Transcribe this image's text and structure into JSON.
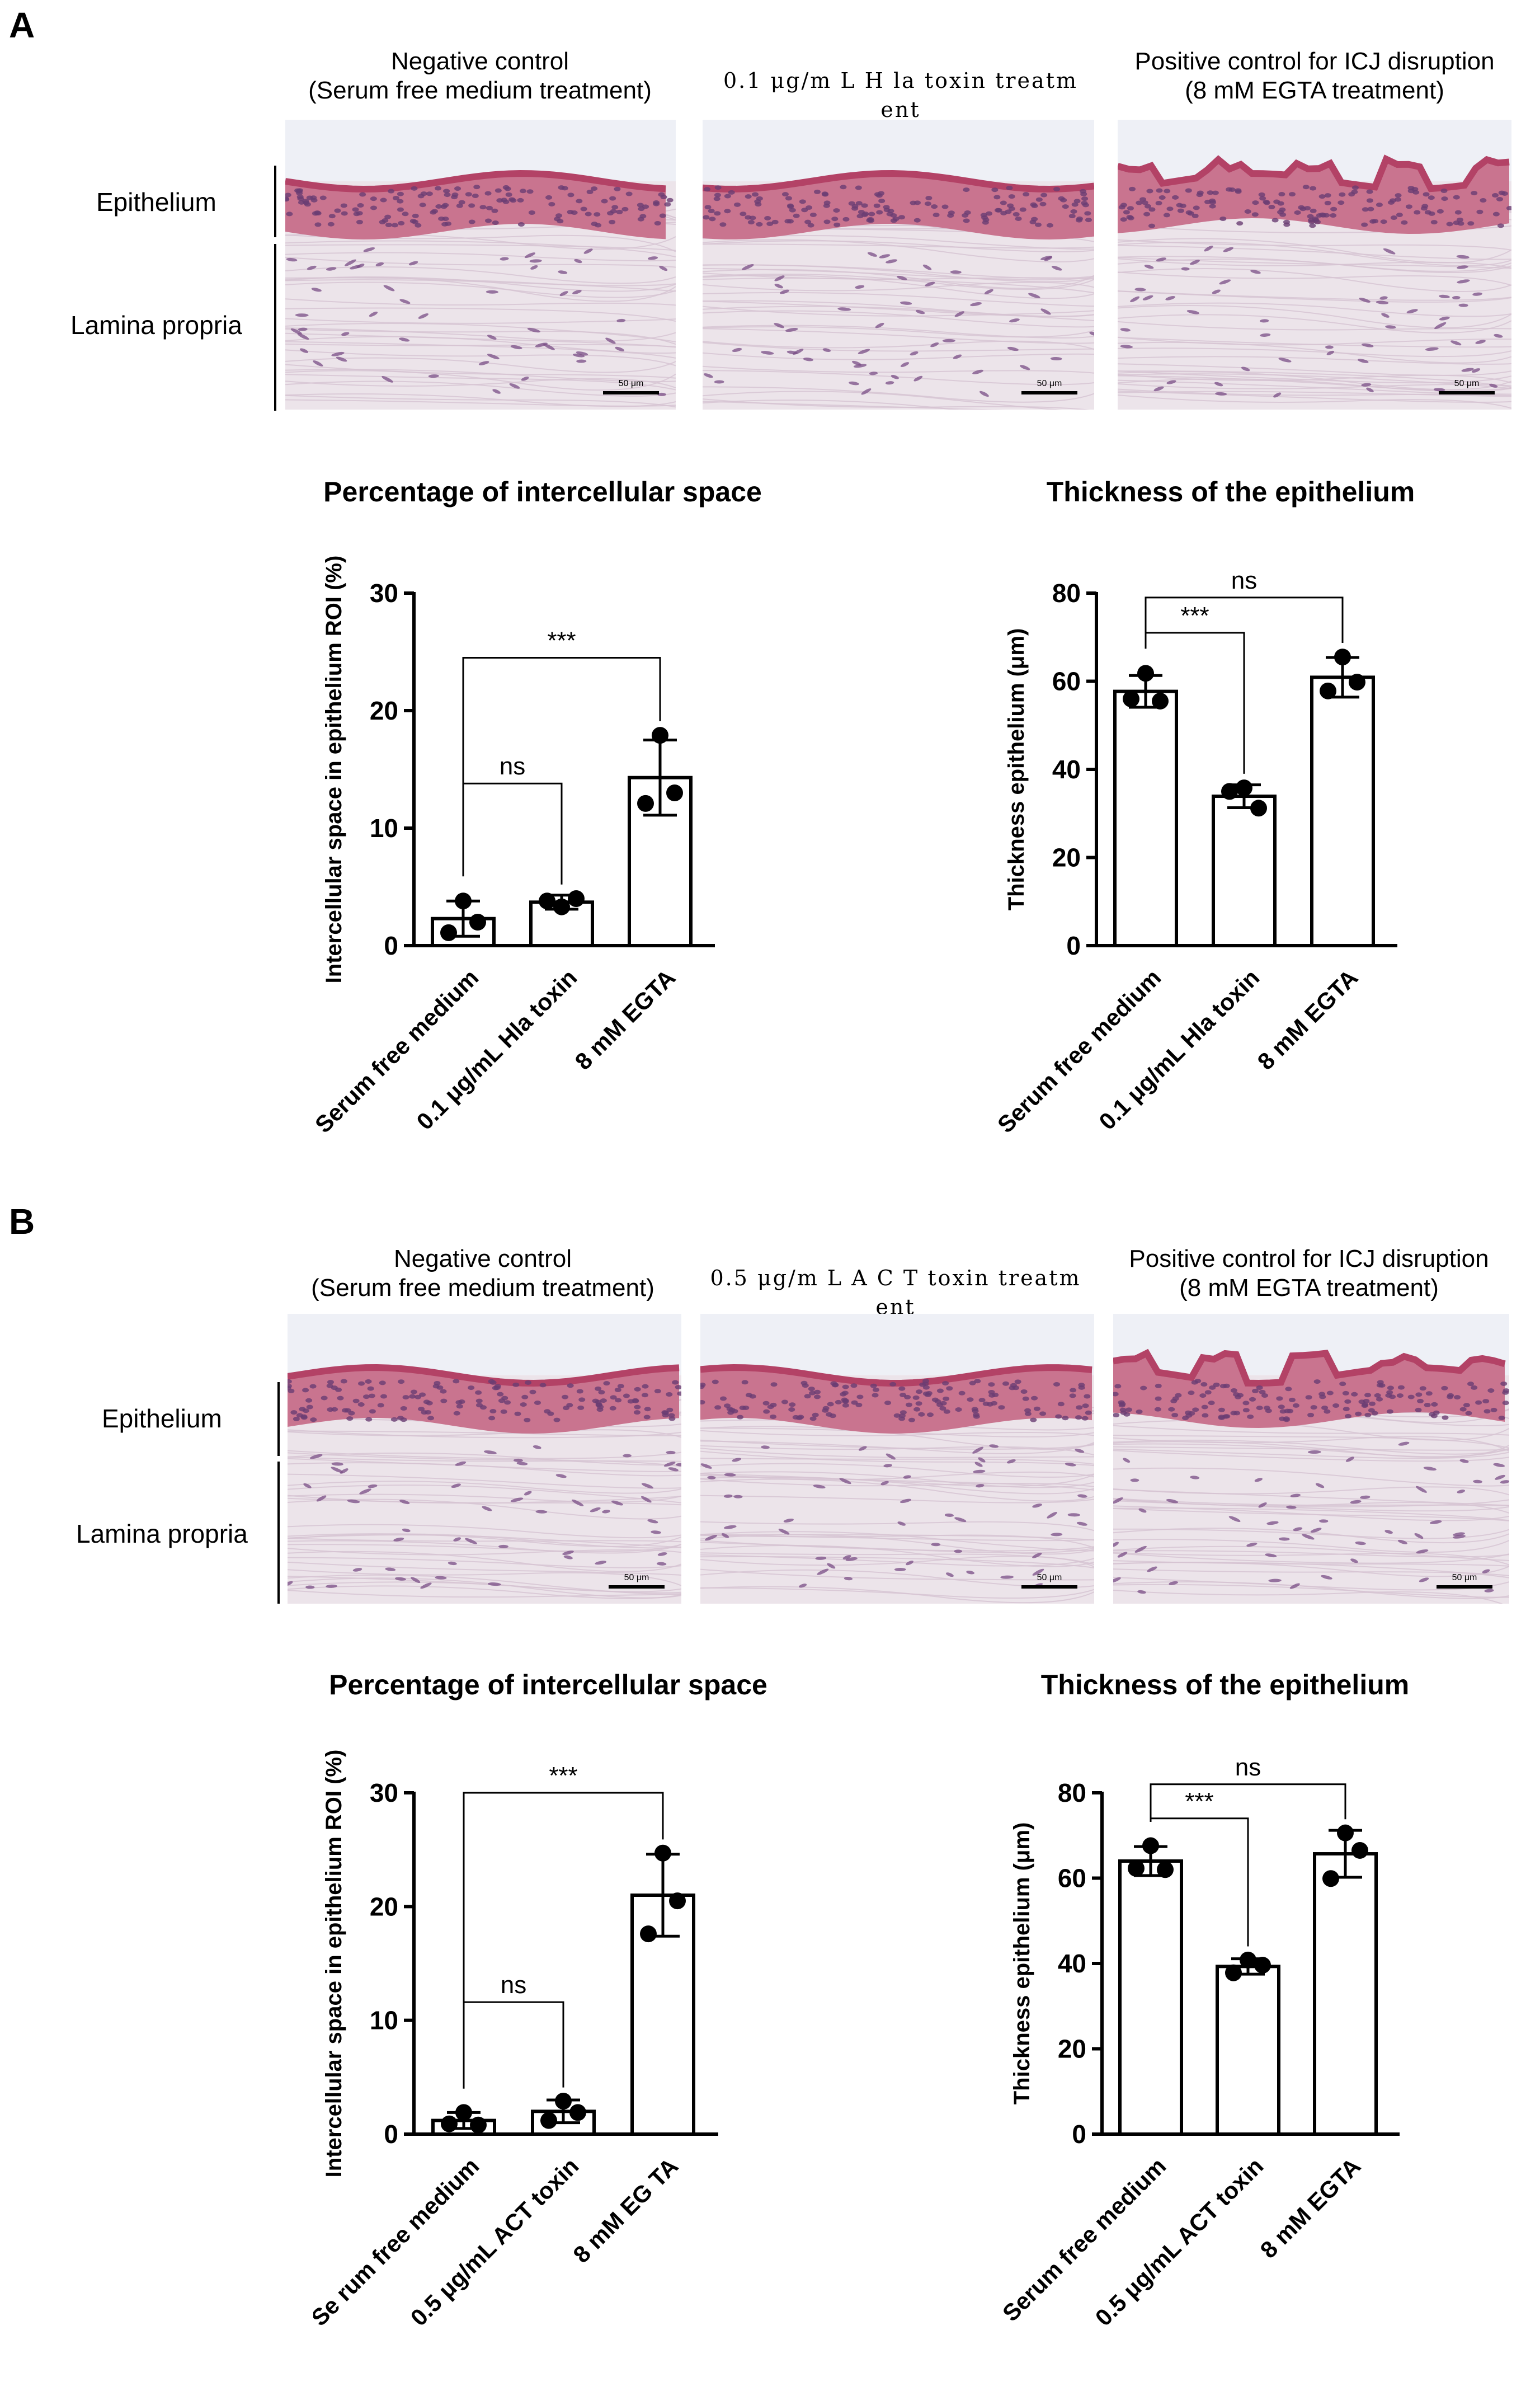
{
  "panels": [
    {
      "letter": "A",
      "micrographs": {
        "captions": [
          [
            "Negative control",
            "(Serum free medium treatment)"
          ],
          [
            "0.1 μg/m L H la toxin treatm ent"
          ],
          [
            "Positive control for ICJ disruption",
            "(8 mM EGTA treatment)"
          ]
        ],
        "layer_labels": [
          "Epithelium",
          "Lamina propria"
        ],
        "scale_label": "50 μm"
      },
      "charts": [
        {
          "title": "Percentage of intercellular space",
          "type": "bar",
          "ylabel": "Intercellular space in epithelium ROI (%)",
          "ylim": [
            0,
            30
          ],
          "yticks": [
            0,
            10,
            20,
            30
          ],
          "categories": [
            "Serum free medium",
            "0.1 μg/mL Hla toxin",
            "8 mM EGTA"
          ],
          "values": [
            2.3,
            3.7,
            14.3
          ],
          "errors": [
            1.5,
            0.6,
            3.2
          ],
          "points": [
            [
              3.8,
              1.1,
              2.0
            ],
            [
              3.3,
              3.8,
              4.0
            ],
            [
              17.9,
              12.1,
              13.0
            ]
          ],
          "annotations": [
            {
              "from": 0,
              "to": 1,
              "label": "ns",
              "y": 13.8
            },
            {
              "from": 0,
              "to": 2,
              "label": "***",
              "y": 24.5
            }
          ]
        },
        {
          "title": "Thickness of the epithelium",
          "type": "bar",
          "ylabel": "Thickness epithelium (μm)",
          "ylim": [
            0,
            80
          ],
          "yticks": [
            0,
            20,
            40,
            60,
            80
          ],
          "categories": [
            "Serum free medium",
            "0.1 μg/mL Hla toxin",
            "8 mM EGTA"
          ],
          "values": [
            57.7,
            33.9,
            60.9
          ],
          "errors": [
            3.6,
            2.6,
            4.5
          ],
          "points": [
            [
              61.8,
              56.0,
              55.5
            ],
            [
              35.8,
              35.0,
              31.2
            ],
            [
              65.5,
              57.8,
              59.8
            ]
          ],
          "annotations": [
            {
              "from": 0,
              "to": 1,
              "label": "***",
              "y": 71.0
            },
            {
              "from": 0,
              "to": 2,
              "label": "ns",
              "y": 79.0
            }
          ]
        }
      ]
    },
    {
      "letter": "B",
      "micrographs": {
        "captions": [
          [
            "Negative control",
            "(Serum free medium treatment)"
          ],
          [
            "0.5 μg/m L A C T toxin treatm ent"
          ],
          [
            "Positive control for ICJ disruption",
            "(8 mM EGTA treatment)"
          ]
        ],
        "layer_labels": [
          "Epithelium",
          "Lamina propria"
        ],
        "scale_label": "50 μm"
      },
      "charts": [
        {
          "title": "Percentage of intercellular space",
          "type": "bar",
          "ylabel": "Intercellular space in epithelium ROI (%)",
          "ylim": [
            0,
            30
          ],
          "yticks": [
            0,
            10,
            20,
            30
          ],
          "categories": [
            "Se rum free medium",
            "0.5 μg/mL ACT toxin",
            "8 mM EG TA"
          ],
          "values": [
            1.2,
            2.0,
            21.0
          ],
          "errors": [
            0.7,
            1.0,
            3.6
          ],
          "points": [
            [
              1.9,
              0.9,
              0.8
            ],
            [
              2.9,
              1.2,
              1.9
            ],
            [
              24.7,
              17.6,
              20.5
            ]
          ],
          "annotations": [
            {
              "from": 0,
              "to": 1,
              "label": "ns",
              "y": 11.6
            },
            {
              "from": 0,
              "to": 2,
              "label": "***",
              "y": 30.0
            }
          ]
        },
        {
          "title": "Thickness of the epithelium",
          "type": "bar",
          "ylabel": "Thickness epithelium (μm)",
          "ylim": [
            0,
            80
          ],
          "yticks": [
            0,
            20,
            40,
            60,
            80
          ],
          "categories": [
            "Serum free medium",
            "0.5 μg/mL ACT toxin",
            "8 mM EGTA"
          ],
          "values": [
            64.0,
            39.3,
            65.7
          ],
          "errors": [
            3.4,
            1.8,
            5.5
          ],
          "points": [
            [
              67.6,
              62.3,
              62.0
            ],
            [
              40.8,
              37.8,
              39.6
            ],
            [
              70.6,
              59.9,
              66.5
            ]
          ],
          "annotations": [
            {
              "from": 0,
              "to": 1,
              "label": "***",
              "y": 74.0
            },
            {
              "from": 0,
              "to": 2,
              "label": "ns",
              "y": 82.0
            }
          ]
        }
      ]
    }
  ]
}
